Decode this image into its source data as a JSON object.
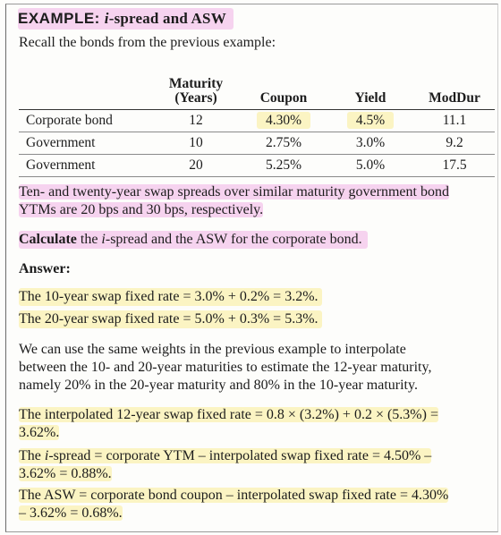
{
  "title": {
    "prefix": "EXAMPLE:",
    "i": "i",
    "rest": "-spread and ASW"
  },
  "intro": "Recall the bonds from the previous example:",
  "table": {
    "headers": {
      "maturity_line1": "Maturity",
      "maturity_line2": "(Years)",
      "coupon": "Coupon",
      "yield": "Yield",
      "moddur": "ModDur"
    },
    "rows": [
      {
        "name": "Corporate bond",
        "maturity": "12",
        "coupon": "4.30%",
        "yield": "4.5%",
        "moddur": "11.1"
      },
      {
        "name": "Government",
        "maturity": "10",
        "coupon": "2.75%",
        "yield": "3.0%",
        "moddur": "9.2"
      },
      {
        "name": "Government",
        "maturity": "20",
        "coupon": "5.25%",
        "yield": "5.0%",
        "moddur": "17.5"
      }
    ]
  },
  "spread_text": {
    "line1": "Ten- and twenty-year swap spreads over similar maturity government bond",
    "line2": "YTMs are 20 bps and 30 bps, respectively."
  },
  "task": {
    "bold": "Calculate",
    "pre": " the ",
    "i": "i",
    "rest": "-spread and the ASW for the corporate bond."
  },
  "answer_label": "Answer:",
  "swap10": "The 10-year swap fixed rate = 3.0% + 0.2% = 3.2%.",
  "swap20": "The 20-year swap fixed rate = 5.0% + 0.3% = 5.3%.",
  "weights": {
    "line1": "We can use the same weights in the previous example to interpolate",
    "line2": "between the 10- and 20-year maturities to estimate the 12-year maturity,",
    "line3": "namely 20% in the 20-year maturity and 80% in the 10-year maturity."
  },
  "interp": {
    "line1": "The interpolated 12-year swap fixed rate = 0.8 × (3.2%) + 0.2 × (5.3%) =",
    "line2": "3.62%."
  },
  "ispread": {
    "pre": "The ",
    "i": "i",
    "line1_rest": "-spread = corporate YTM – interpolated swap fixed rate = 4.50% –",
    "line2": "3.62% = 0.88%."
  },
  "asw": {
    "line1": "The ASW = corporate bond coupon – interpolated swap fixed rate = 4.30%",
    "line2": "– 3.62% = 0.68%."
  }
}
